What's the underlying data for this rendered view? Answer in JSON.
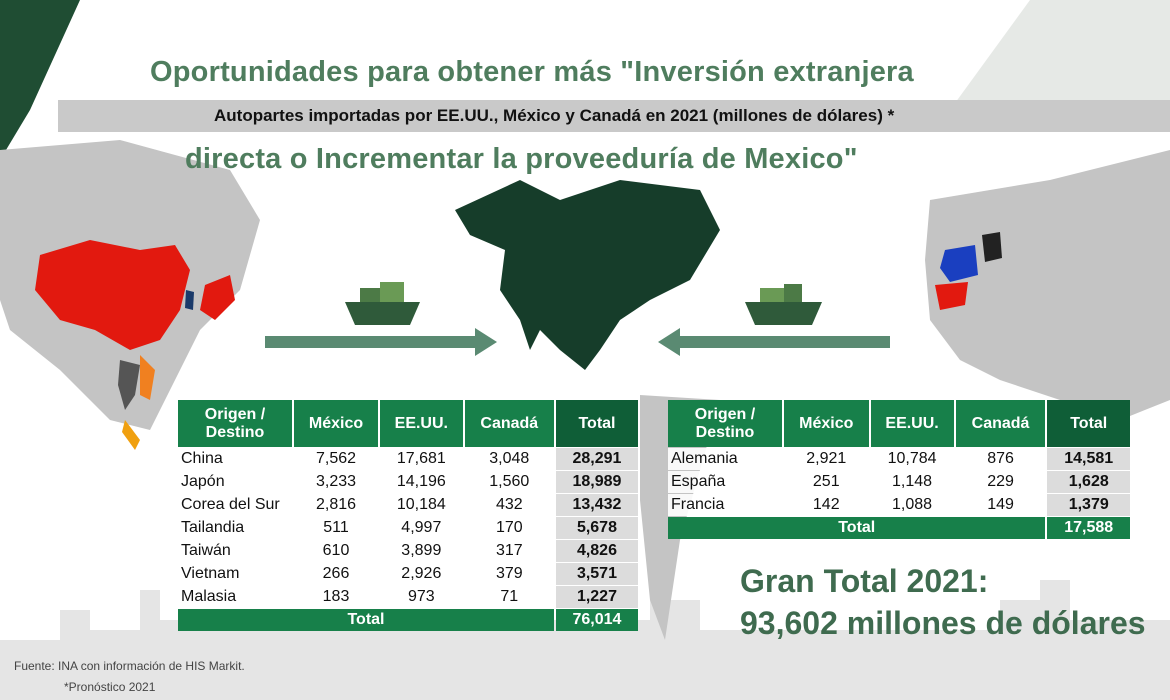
{
  "title_line1": "Oportunidades para obtener más \"Inversión extranjera",
  "title_line2": "directa o Incrementar la proveeduría de Mexico\"",
  "subtitle": "Autopartes importadas por EE.UU., México y Canadá en 2021 (millones de dólares) *",
  "columns": [
    "Origen / Destino",
    "México",
    "EE.UU.",
    "Canadá",
    "Total"
  ],
  "asia_table": {
    "rows": [
      [
        "China",
        "7,562",
        "17,681",
        "3,048",
        "28,291"
      ],
      [
        "Japón",
        "3,233",
        "14,196",
        "1,560",
        "18,989"
      ],
      [
        "Corea del Sur",
        "2,816",
        "10,184",
        "432",
        "13,432"
      ],
      [
        "Tailandia",
        "511",
        "4,997",
        "170",
        "5,678"
      ],
      [
        "Taiwán",
        "610",
        "3,899",
        "317",
        "4,826"
      ],
      [
        "Vietnam",
        "266",
        "2,926",
        "379",
        "3,571"
      ],
      [
        "Malasia",
        "183",
        "973",
        "71",
        "1,227"
      ]
    ],
    "total_label": "Total",
    "total_value": "76,014"
  },
  "europe_table": {
    "rows": [
      [
        "Alemania",
        "2,921",
        "10,784",
        "876",
        "14,581"
      ],
      [
        "España",
        "251",
        "1,148",
        "229",
        "1,628"
      ],
      [
        "Francia",
        "142",
        "1,088",
        "149",
        "1,379"
      ]
    ],
    "total_label": "Total",
    "total_value": "17,588"
  },
  "grand_total_line1": "Gran Total 2021:",
  "grand_total_line2": "93,602 millones de dólares",
  "source": "Fuente: INA con información de HIS Markit.",
  "note": "*Pronóstico 2021",
  "colors": {
    "header_green": "#17804a",
    "title_green": "#4f7d5e",
    "north_america": "#163d2a",
    "china": "#e01e10",
    "arrow": "#5a8a72"
  }
}
